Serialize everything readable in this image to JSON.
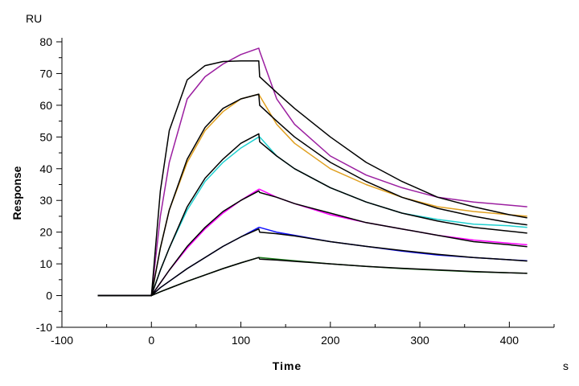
{
  "chart_data": {
    "type": "line",
    "title": "",
    "xlabel": "Time",
    "x_unit": "s",
    "ylabel": "Response",
    "y_unit": "RU",
    "xlim": [
      -100,
      450
    ],
    "ylim": [
      -10,
      80
    ],
    "x_ticks": [
      -100,
      0,
      100,
      200,
      300,
      400
    ],
    "y_ticks": [
      -10,
      0,
      10,
      20,
      30,
      40,
      50,
      60,
      70,
      80
    ],
    "grid": false,
    "legend": "none",
    "x": [
      -60,
      0,
      10,
      20,
      40,
      60,
      80,
      100,
      120,
      121,
      140,
      160,
      200,
      240,
      280,
      320,
      360,
      400,
      420
    ],
    "series": [
      {
        "color": "#9b1ea0",
        "kind": "measured",
        "values": [
          0,
          0,
          25,
          42,
          62,
          69,
          73,
          76,
          78,
          77,
          62,
          54,
          44,
          38,
          34,
          31,
          29.5,
          28.5,
          28
        ]
      },
      {
        "color": "#e0a020",
        "kind": "measured",
        "values": [
          0,
          0,
          15,
          27,
          42,
          52,
          58,
          62,
          63.5,
          63,
          54,
          48,
          40,
          35,
          31,
          28,
          26.5,
          25.5,
          25
        ]
      },
      {
        "color": "#20d0d0",
        "kind": "measured",
        "values": [
          0,
          0,
          8,
          15,
          27,
          36,
          42,
          46.5,
          50,
          50,
          44,
          40,
          34,
          29.5,
          26,
          24,
          22.5,
          22,
          21.5
        ]
      },
      {
        "color": "#ff00ff",
        "kind": "measured",
        "values": [
          0,
          0,
          4,
          8,
          15,
          21,
          26,
          30,
          33.5,
          33.5,
          31,
          29,
          25.5,
          23,
          21,
          19,
          17.5,
          16.5,
          16
        ]
      },
      {
        "color": "#1010ff",
        "kind": "measured",
        "values": [
          0,
          0,
          2.5,
          4.5,
          8.5,
          12,
          15.5,
          18.5,
          21.5,
          21.5,
          20,
          19,
          17,
          15.5,
          14,
          12.8,
          12,
          11.3,
          11
        ]
      },
      {
        "color": "#1a7a1a",
        "kind": "measured",
        "values": [
          0,
          0,
          1.2,
          2.3,
          4.5,
          6.5,
          8.5,
          10.3,
          12,
          12,
          11.5,
          11,
          10,
          9.2,
          8.5,
          8,
          7.5,
          7.2,
          7
        ]
      },
      {
        "color": "#000000",
        "kind": "fit",
        "values": [
          0,
          0,
          33,
          52,
          68,
          72.5,
          73.8,
          74,
          74,
          69,
          64,
          59,
          50,
          42,
          36,
          31,
          28,
          25.5,
          24.5
        ]
      },
      {
        "color": "#000000",
        "kind": "fit",
        "values": [
          0,
          0,
          15,
          27,
          43,
          53,
          59,
          62,
          63.5,
          60,
          55,
          50,
          42,
          36,
          31,
          27.5,
          25,
          23,
          22.3
        ]
      },
      {
        "color": "#000000",
        "kind": "fit",
        "values": [
          0,
          0,
          8,
          15,
          28,
          37,
          43,
          48,
          51,
          48.5,
          44,
          40,
          34,
          29.5,
          26,
          23.5,
          21.5,
          20.3,
          19.7
        ]
      },
      {
        "color": "#000000",
        "kind": "fit",
        "values": [
          0,
          0,
          4,
          8,
          15.5,
          21.5,
          26.5,
          30,
          33,
          32.5,
          31,
          29,
          26,
          23,
          21,
          19,
          17,
          16,
          15.4
        ]
      },
      {
        "color": "#000000",
        "kind": "fit",
        "values": [
          0,
          0,
          2.5,
          4.5,
          8.5,
          12,
          15.5,
          18.5,
          21,
          20,
          19.5,
          18.8,
          17,
          15.5,
          14.2,
          13,
          12,
          11.3,
          10.9
        ]
      },
      {
        "color": "#000000",
        "kind": "fit",
        "values": [
          0,
          0,
          1.2,
          2.3,
          4.5,
          6.5,
          8.5,
          10.3,
          12,
          11.5,
          11.2,
          10.8,
          10,
          9.2,
          8.6,
          8.1,
          7.6,
          7.2,
          7.0
        ]
      }
    ]
  }
}
